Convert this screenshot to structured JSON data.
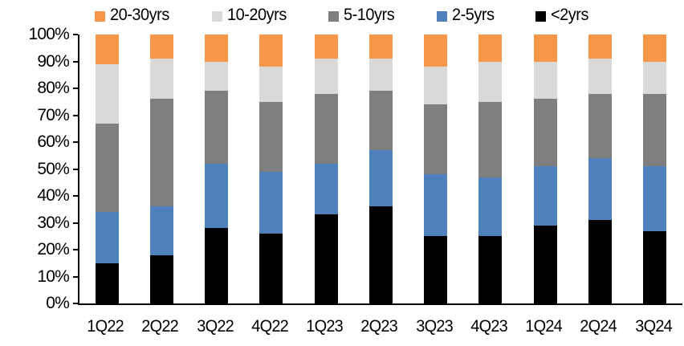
{
  "chart_data": {
    "type": "bar",
    "variant": "stacked-100-percent-column",
    "title": "",
    "xlabel": "",
    "ylabel": "",
    "grid": false,
    "ylim": [
      0,
      100
    ],
    "ytick_step": 10,
    "ytick_labels": [
      "0%",
      "10%",
      "20%",
      "30%",
      "40%",
      "50%",
      "60%",
      "70%",
      "80%",
      "90%",
      "100%"
    ],
    "categories": [
      "1Q22",
      "2Q22",
      "3Q22",
      "4Q22",
      "1Q23",
      "2Q23",
      "3Q23",
      "4Q23",
      "1Q24",
      "2Q24",
      "3Q24"
    ],
    "series": [
      {
        "name": "<2yrs",
        "key": "lt-2yrs",
        "color": "#000000",
        "values": [
          15,
          18,
          28,
          26,
          33,
          36,
          25,
          25,
          29,
          31,
          27
        ]
      },
      {
        "name": "2-5yrs",
        "key": "2-5yrs",
        "color": "#4F81BD",
        "values": [
          19,
          18,
          24,
          23,
          19,
          21,
          23,
          22,
          22,
          23,
          24
        ]
      },
      {
        "name": "5-10yrs",
        "key": "5-10yrs",
        "color": "#7F7F7F",
        "values": [
          33,
          40,
          27,
          26,
          26,
          22,
          26,
          28,
          25,
          24,
          27
        ]
      },
      {
        "name": "10-20yrs",
        "key": "10-20yrs",
        "color": "#D9D9D9",
        "values": [
          22,
          15,
          11,
          13,
          13,
          12,
          14,
          15,
          14,
          13,
          12
        ]
      },
      {
        "name": "20-30yrs",
        "key": "20-30yrs",
        "color": "#F79646",
        "values": [
          11,
          9,
          10,
          12,
          9,
          9,
          12,
          10,
          10,
          9,
          10
        ]
      }
    ],
    "legend": {
      "position": "top",
      "items": [
        {
          "label": "20-30yrs",
          "color": "#F79646"
        },
        {
          "label": "10-20yrs",
          "color": "#D9D9D9"
        },
        {
          "label": "5-10yrs",
          "color": "#7F7F7F"
        },
        {
          "label": "2-5yrs",
          "color": "#4F81BD"
        },
        {
          "label": "<2yrs",
          "color": "#000000"
        }
      ]
    },
    "colors": {
      "axis": "#000000",
      "background": "#FFFFFF"
    }
  }
}
